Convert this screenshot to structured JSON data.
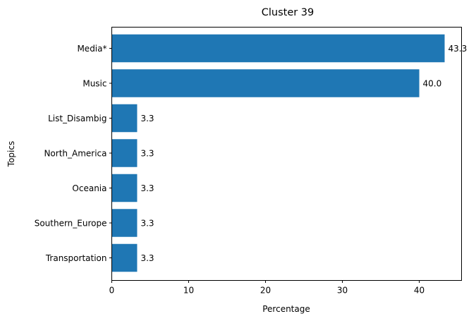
{
  "chart_data": {
    "type": "bar",
    "orientation": "horizontal",
    "title": "Cluster 39",
    "xlabel": "Percentage",
    "ylabel": "Topics",
    "xlim": [
      0,
      45.5
    ],
    "xticks": [
      "0",
      "10",
      "20",
      "30",
      "40"
    ],
    "categories": [
      "Media*",
      "Music",
      "List_Disambig",
      "North_America",
      "Oceania",
      "Southern_Europe",
      "Transportation"
    ],
    "values": [
      43.3,
      40.0,
      3.3,
      3.3,
      3.3,
      3.3,
      3.3
    ],
    "data_labels": [
      "43.3",
      "40.0",
      "3.3",
      "3.3",
      "3.3",
      "3.3",
      "3.3"
    ],
    "bar_color": "#1f77b4",
    "grid": false,
    "legend": "none"
  }
}
